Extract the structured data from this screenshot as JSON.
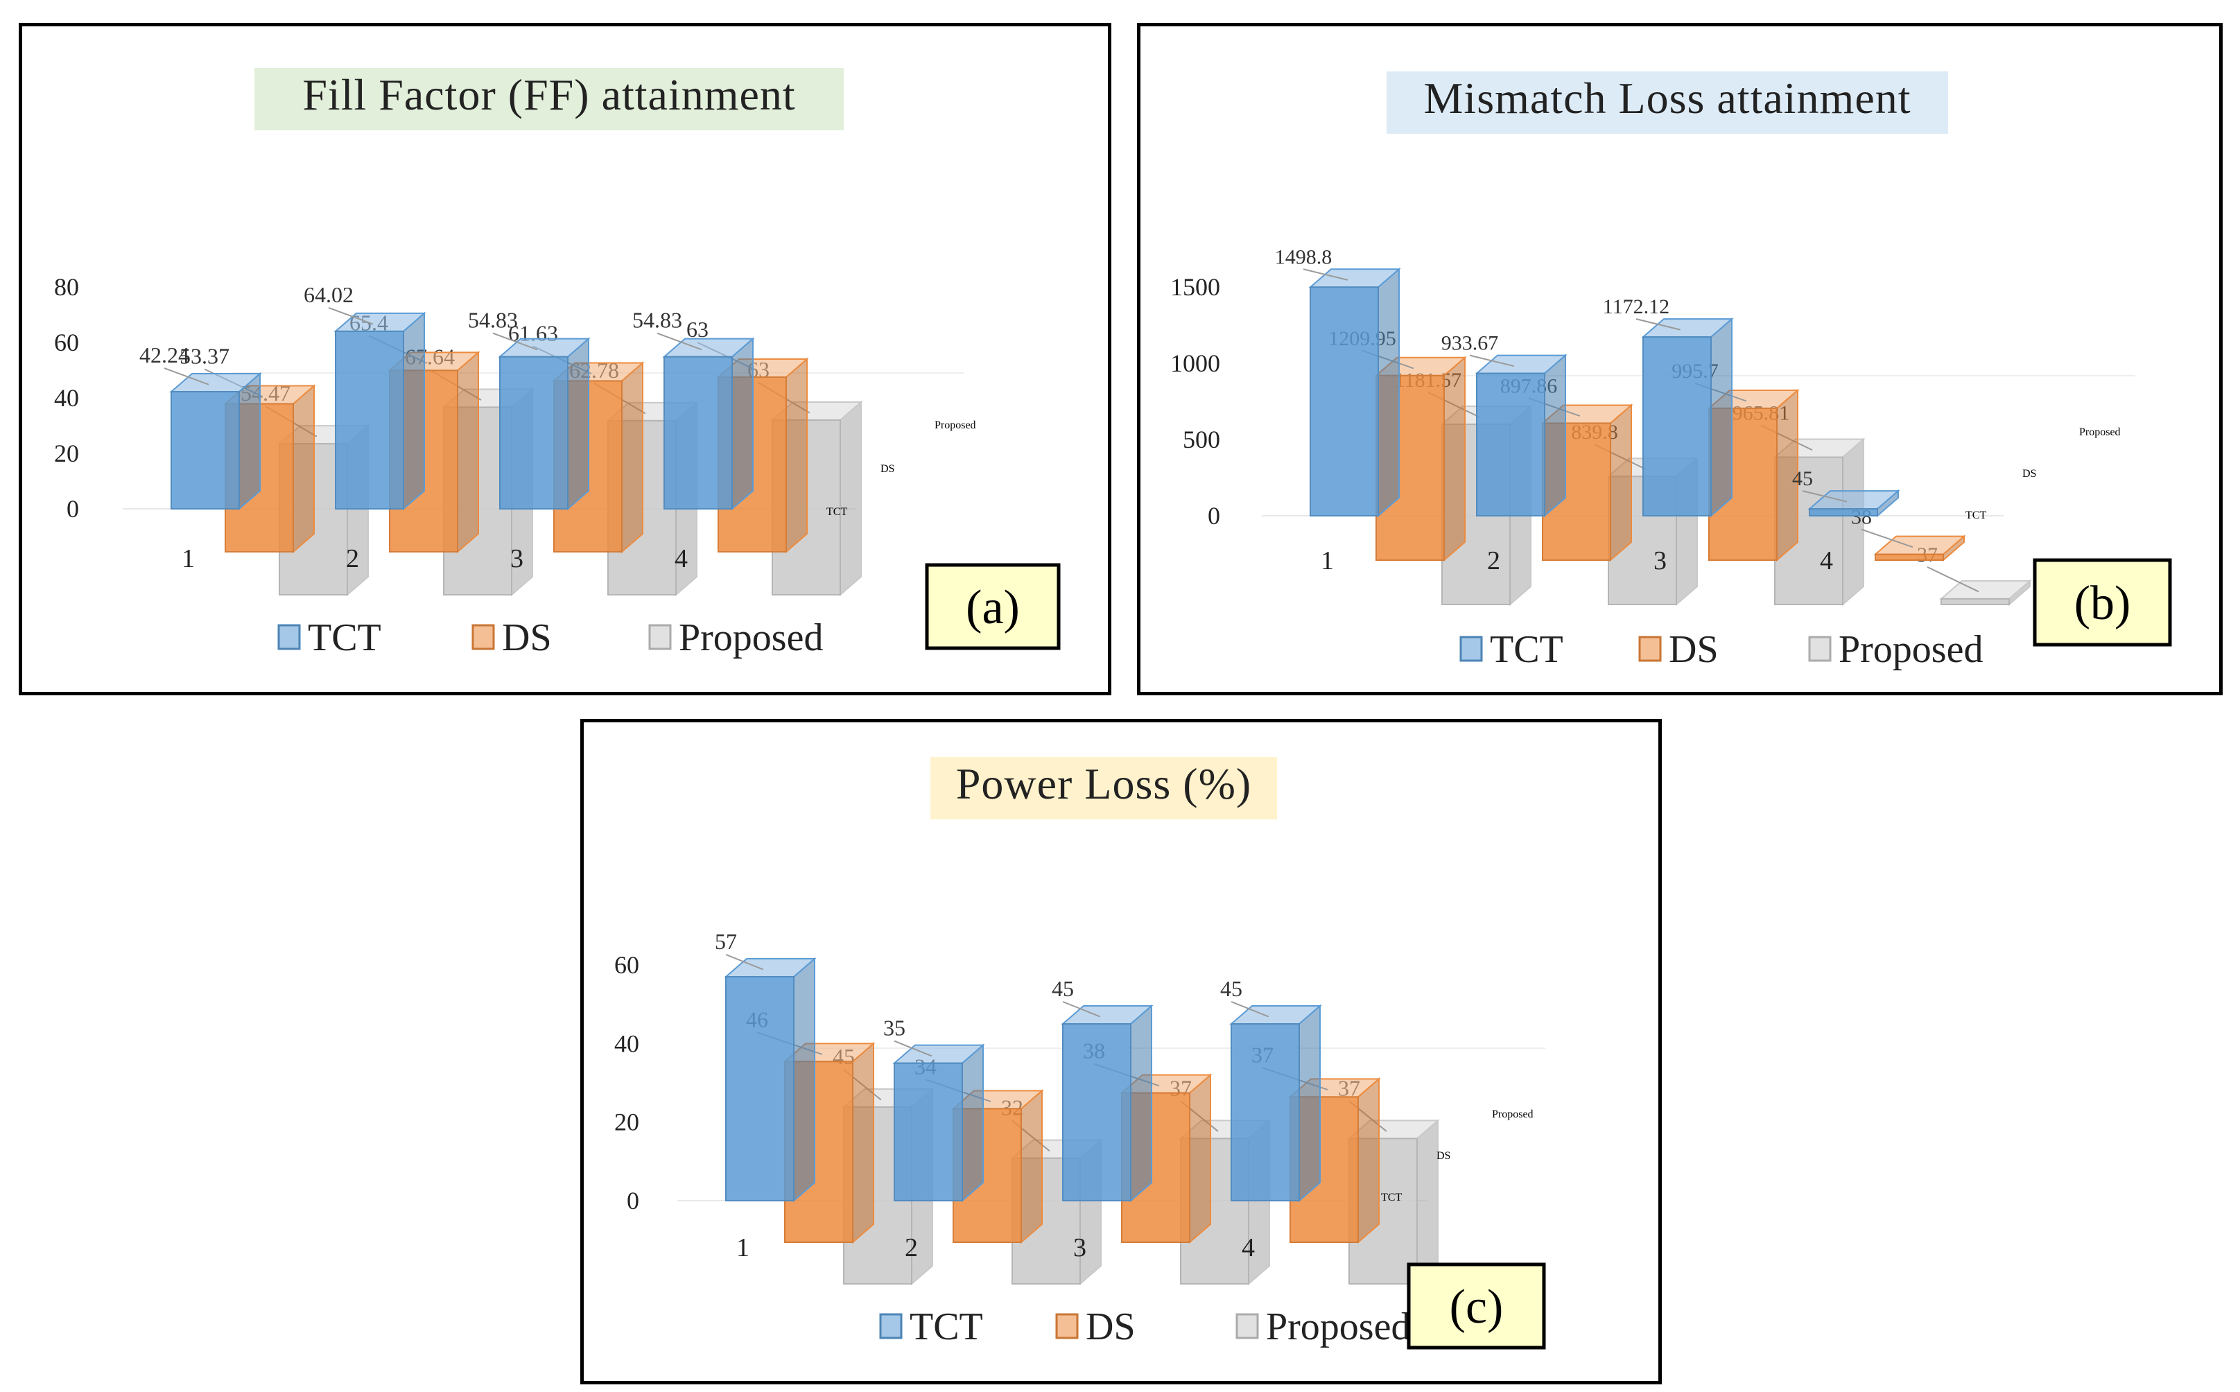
{
  "colors": {
    "tct": "#5b9bd5",
    "ds": "#ed8b3e",
    "proposed": "#c9c9c9",
    "title_a_bg": "#e2efda",
    "title_b_bg": "#ddebf7",
    "title_c_bg": "#fff2cc",
    "tag_bg": "#ffffcc"
  },
  "chart_data": [
    {
      "type": "bar",
      "title": "Fill Factor  (FF) attainment",
      "panel_label": "(a)",
      "categories": [
        "1",
        "2",
        "3",
        "4"
      ],
      "yticks": [
        "0",
        "20",
        "40",
        "60",
        "80"
      ],
      "ylim": [
        0,
        80
      ],
      "depth_labels": [
        "TCT",
        "DS",
        "Proposed"
      ],
      "series": [
        {
          "name": "TCT",
          "values": [
            42.24,
            64.02,
            54.83,
            54.83
          ],
          "labels": [
            "42.24",
            "64.02",
            "54.83",
            "54.83"
          ]
        },
        {
          "name": "DS",
          "values": [
            53.37,
            65.4,
            61.63,
            63
          ],
          "labels": [
            "53.37",
            "65.4",
            "61.63",
            "63"
          ]
        },
        {
          "name": "Proposed",
          "values": [
            54.47,
            67.64,
            62.78,
            63
          ],
          "labels": [
            "54.47",
            "67.64",
            "62.78",
            "63"
          ]
        }
      ],
      "legend": [
        "TCT",
        "DS",
        "Proposed"
      ]
    },
    {
      "type": "bar",
      "title": "Mismatch Loss attainment",
      "panel_label": "(b)",
      "categories": [
        "1",
        "2",
        "3",
        "4"
      ],
      "yticks": [
        "0",
        "500",
        "1000",
        "1500"
      ],
      "ylim": [
        0,
        1500
      ],
      "depth_labels": [
        "TCT",
        "DS",
        "Proposed"
      ],
      "series": [
        {
          "name": "TCT",
          "values": [
            1498.8,
            933.67,
            1172.12,
            45
          ],
          "labels": [
            "1498.8",
            "933.67",
            "1172.12",
            "45"
          ]
        },
        {
          "name": "DS",
          "values": [
            1209.95,
            897.86,
            995.7,
            38
          ],
          "labels": [
            "1209.95",
            "897.86",
            "995.7",
            "38"
          ]
        },
        {
          "name": "Proposed",
          "values": [
            1181.57,
            839.8,
            965.81,
            37
          ],
          "labels": [
            "1181.57",
            "839.8",
            "965.81",
            "37"
          ]
        }
      ],
      "legend": [
        "TCT",
        "DS",
        "Proposed"
      ]
    },
    {
      "type": "bar",
      "title": "Power Loss (%)",
      "panel_label": "(c)",
      "categories": [
        "1",
        "2",
        "3",
        "4"
      ],
      "yticks": [
        "0",
        "20",
        "40",
        "60"
      ],
      "ylim": [
        0,
        60
      ],
      "depth_labels": [
        "TCT",
        "DS",
        "Proposed"
      ],
      "series": [
        {
          "name": "TCT",
          "values": [
            57,
            35,
            45,
            45
          ],
          "labels": [
            "57",
            "35",
            "45",
            "45"
          ]
        },
        {
          "name": "DS",
          "values": [
            46,
            34,
            38,
            37
          ],
          "labels": [
            "46",
            "34",
            "38",
            "37"
          ]
        },
        {
          "name": "Proposed",
          "values": [
            45,
            32,
            37,
            37
          ],
          "labels": [
            "45",
            "32",
            "37",
            "37"
          ]
        }
      ],
      "legend": [
        "TCT",
        "DS",
        "Proposed"
      ]
    }
  ]
}
